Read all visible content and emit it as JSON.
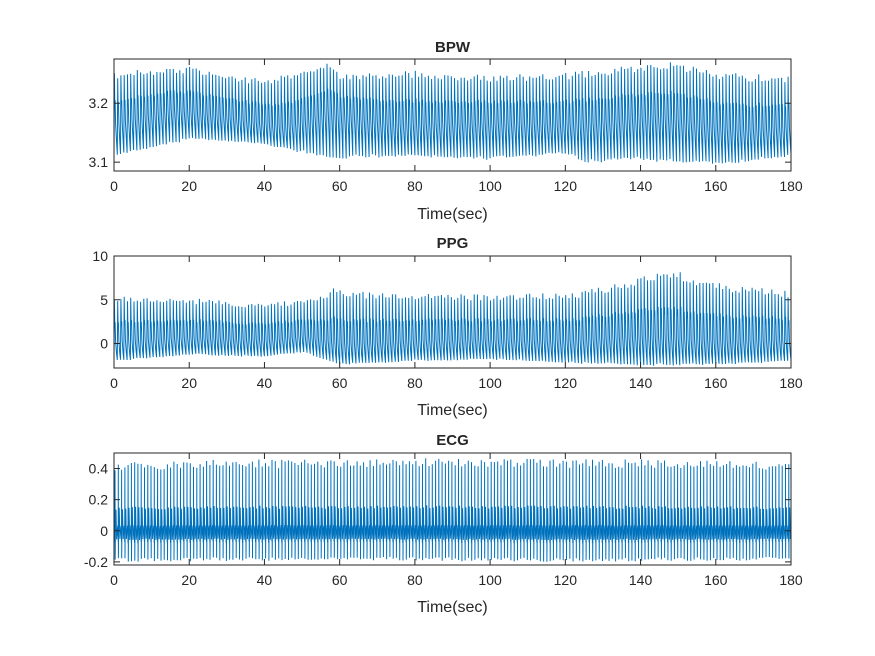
{
  "figure": {
    "background": "#ffffff"
  },
  "chart_data": [
    {
      "type": "line",
      "title": "BPW",
      "xlabel": "Time(sec)",
      "ylabel": "",
      "xlim": [
        0,
        180
      ],
      "ylim": [
        3.085,
        3.275
      ],
      "xticks": [
        0,
        20,
        40,
        60,
        80,
        100,
        120,
        140,
        160,
        180
      ],
      "yticks": [
        3.1,
        3.2
      ],
      "ytick_labels": [
        "3.1",
        "3.2"
      ],
      "grid": false,
      "color": "#0072BD",
      "signal": {
        "beats_per_sec": 1.15,
        "upper_envelope": [
          [
            0,
            3.255
          ],
          [
            20,
            3.262
          ],
          [
            40,
            3.24
          ],
          [
            57,
            3.268
          ],
          [
            60,
            3.25
          ],
          [
            80,
            3.255
          ],
          [
            100,
            3.248
          ],
          [
            120,
            3.252
          ],
          [
            148,
            3.272
          ],
          [
            160,
            3.255
          ],
          [
            180,
            3.245
          ]
        ],
        "lower_envelope": [
          [
            0,
            3.11
          ],
          [
            20,
            3.14
          ],
          [
            40,
            3.13
          ],
          [
            50,
            3.115
          ],
          [
            60,
            3.105
          ],
          [
            80,
            3.11
          ],
          [
            100,
            3.105
          ],
          [
            120,
            3.115
          ],
          [
            125,
            3.1
          ],
          [
            140,
            3.105
          ],
          [
            160,
            3.095
          ],
          [
            180,
            3.11
          ]
        ],
        "baseline": [
          [
            0,
            3.15
          ],
          [
            15,
            3.178
          ],
          [
            30,
            3.165
          ],
          [
            45,
            3.145
          ],
          [
            57,
            3.175
          ],
          [
            75,
            3.15
          ],
          [
            100,
            3.155
          ],
          [
            120,
            3.15
          ],
          [
            145,
            3.165
          ],
          [
            165,
            3.14
          ],
          [
            180,
            3.145
          ]
        ]
      }
    },
    {
      "type": "line",
      "title": "PPG",
      "xlabel": "Time(sec)",
      "ylabel": "",
      "xlim": [
        0,
        180
      ],
      "ylim": [
        -2.8,
        10
      ],
      "xticks": [
        0,
        20,
        40,
        60,
        80,
        100,
        120,
        140,
        160,
        180
      ],
      "yticks": [
        0,
        5,
        10
      ],
      "ytick_labels": [
        "0",
        "5",
        "10"
      ],
      "grid": false,
      "color": "#0072BD",
      "signal": {
        "beats_per_sec": 1.15,
        "upper_envelope": [
          [
            0,
            5.5
          ],
          [
            20,
            5.2
          ],
          [
            40,
            4.5
          ],
          [
            55,
            5.5
          ],
          [
            58,
            6.5
          ],
          [
            65,
            6.0
          ],
          [
            80,
            5.8
          ],
          [
            100,
            5.6
          ],
          [
            120,
            5.8
          ],
          [
            130,
            6.5
          ],
          [
            148,
            8.5
          ],
          [
            160,
            7.0
          ],
          [
            180,
            6.0
          ]
        ],
        "lower_envelope": [
          [
            0,
            -2.0
          ],
          [
            20,
            -1.3
          ],
          [
            40,
            -1.5
          ],
          [
            50,
            -1.0
          ],
          [
            60,
            -2.4
          ],
          [
            80,
            -2.0
          ],
          [
            100,
            -1.8
          ],
          [
            120,
            -2.2
          ],
          [
            140,
            -2.5
          ],
          [
            160,
            -2.4
          ],
          [
            180,
            -2.0
          ]
        ],
        "baseline": [
          [
            0,
            -0.6
          ],
          [
            20,
            0.0
          ],
          [
            40,
            -0.3
          ],
          [
            50,
            0.2
          ],
          [
            60,
            -1.0
          ],
          [
            80,
            -0.5
          ],
          [
            100,
            -0.4
          ],
          [
            120,
            -0.6
          ],
          [
            135,
            -0.2
          ],
          [
            160,
            -0.8
          ],
          [
            180,
            -0.5
          ]
        ]
      }
    },
    {
      "type": "line",
      "title": "ECG",
      "xlabel": "Time(sec)",
      "ylabel": "",
      "xlim": [
        0,
        180
      ],
      "ylim": [
        -0.22,
        0.5
      ],
      "xticks": [
        0,
        20,
        40,
        60,
        80,
        100,
        120,
        140,
        160,
        180
      ],
      "yticks": [
        -0.2,
        0,
        0.2,
        0.4
      ],
      "ytick_labels": [
        "-0.2",
        "0",
        "0.2",
        "0.4"
      ],
      "grid": false,
      "color": "#0072BD",
      "signal": {
        "beats_per_sec": 1.15,
        "upper_envelope": [
          [
            0,
            0.44
          ],
          [
            30,
            0.46
          ],
          [
            60,
            0.46
          ],
          [
            90,
            0.47
          ],
          [
            120,
            0.46
          ],
          [
            150,
            0.46
          ],
          [
            180,
            0.44
          ]
        ],
        "lower_envelope": [
          [
            0,
            -0.2
          ],
          [
            60,
            -0.19
          ],
          [
            120,
            -0.2
          ],
          [
            180,
            -0.19
          ]
        ],
        "baseline": [
          [
            0,
            0.0
          ],
          [
            180,
            0.0
          ]
        ]
      }
    }
  ]
}
